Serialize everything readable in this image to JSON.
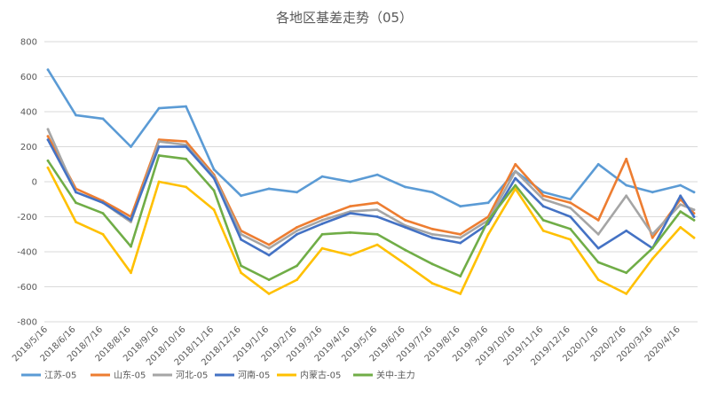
{
  "chart_data": {
    "type": "line",
    "title": "各地区基差走势（05）",
    "xlabel": "",
    "ylabel": "",
    "ylim": [
      -800,
      800
    ],
    "yticks": [
      -800,
      -600,
      -400,
      -200,
      0,
      200,
      400,
      600,
      800
    ],
    "grid": true,
    "legend_position": "bottom",
    "x_tick_labels": [
      "2018/5/16",
      "2018/6/16",
      "2018/7/16",
      "2018/8/16",
      "2018/9/16",
      "2018/10/16",
      "2018/11/16",
      "2018/12/16",
      "2019/1/16",
      "2019/2/16",
      "2019/3/16",
      "2019/4/16",
      "2019/5/16",
      "2019/6/16",
      "2019/7/16",
      "2019/8/16",
      "2019/9/16",
      "2019/10/16",
      "2019/11/16",
      "2019/12/16",
      "2020/1/16",
      "2020/2/16",
      "2020/3/16",
      "2020/4/16"
    ],
    "x": [
      "2018/5/16",
      "2018/6/16",
      "2018/7/16",
      "2018/8/16",
      "2018/9/16",
      "2018/10/16",
      "2018/11/16",
      "2018/12/16",
      "2019/1/16",
      "2019/2/16",
      "2019/3/16",
      "2019/4/16",
      "2019/5/16",
      "2019/6/16",
      "2019/7/16",
      "2019/8/16",
      "2019/9/16",
      "2019/10/16",
      "2019/11/16",
      "2019/12/16",
      "2020/1/16",
      "2020/2/16",
      "2020/3/16",
      "2020/4/16",
      "2020/5/1"
    ],
    "series": [
      {
        "name": "江苏-05",
        "color": "#5b9bd5",
        "values": [
          640,
          380,
          360,
          200,
          420,
          430,
          70,
          -80,
          -40,
          -60,
          30,
          0,
          40,
          -30,
          -60,
          -140,
          -120,
          60,
          -60,
          -100,
          100,
          -20,
          -60,
          -20,
          -60
        ]
      },
      {
        "name": "山东-05",
        "color": "#ed7d31",
        "values": [
          260,
          -40,
          -110,
          -200,
          240,
          230,
          40,
          -280,
          -360,
          -260,
          -200,
          -140,
          -120,
          -220,
          -270,
          -300,
          -200,
          100,
          -80,
          -120,
          -220,
          130,
          -320,
          -100,
          -180
        ]
      },
      {
        "name": "河北-05",
        "color": "#a5a5a5",
        "values": [
          300,
          -60,
          -120,
          -230,
          230,
          210,
          30,
          -300,
          -380,
          -280,
          -220,
          -170,
          -160,
          -250,
          -300,
          -320,
          -220,
          60,
          -100,
          -150,
          -300,
          -80,
          -300,
          -130,
          -160
        ]
      },
      {
        "name": "河南-05",
        "color": "#4472c4",
        "values": [
          240,
          -60,
          -120,
          -220,
          200,
          200,
          20,
          -330,
          -420,
          -300,
          -240,
          -180,
          -200,
          -260,
          -320,
          -350,
          -240,
          20,
          -140,
          -200,
          -380,
          -280,
          -380,
          -80,
          -200
        ]
      },
      {
        "name": "内蒙古-05",
        "color": "#ffc000",
        "values": [
          80,
          -230,
          -300,
          -520,
          0,
          -30,
          -160,
          -520,
          -640,
          -560,
          -380,
          -420,
          -360,
          -470,
          -580,
          -640,
          -300,
          -40,
          -280,
          -330,
          -560,
          -640,
          -440,
          -260,
          -320
        ]
      },
      {
        "name": "关中-主力",
        "color": "#70ad47",
        "values": [
          120,
          -120,
          -180,
          -370,
          150,
          130,
          -50,
          -480,
          -560,
          -480,
          -300,
          -290,
          -300,
          -390,
          -470,
          -540,
          -220,
          -20,
          -220,
          -270,
          -460,
          -520,
          -380,
          -170,
          -220
        ]
      }
    ]
  }
}
